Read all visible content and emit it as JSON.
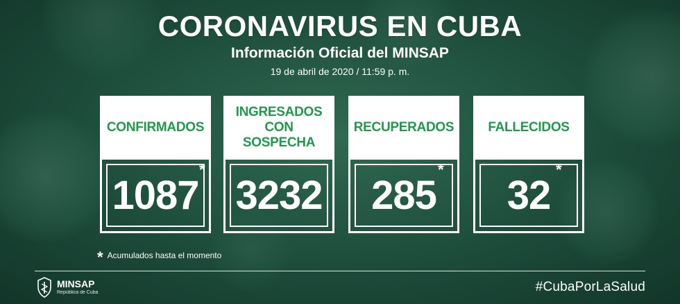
{
  "header": {
    "title": "CORONAVIRUS EN CUBA",
    "subtitle": "Información Oficial del MINSAP",
    "datetime": "19 de abril de 2020 / 11:59 p. m."
  },
  "cards": [
    {
      "label": "CONFIRMADOS",
      "value": "1087",
      "star": "*"
    },
    {
      "label": "INGRESADOS CON SOSPECHA",
      "value": "3232",
      "star": ""
    },
    {
      "label": "RECUPERADOS",
      "value": "285",
      "star": "*"
    },
    {
      "label": "FALLECIDOS",
      "value": "32",
      "star": "*"
    }
  ],
  "footnote": {
    "mark": "*",
    "text": "Acumulados hasta el momento"
  },
  "footer": {
    "logo_name": "MINSAP",
    "logo_sub": "República de Cuba",
    "hashtag": "#CubaPorLaSalud"
  },
  "colors": {
    "accent_green": "#1f9a4a",
    "background": "#2f6a52",
    "text": "#ffffff"
  },
  "icons": {
    "logo": "minsap-emblem-icon"
  }
}
